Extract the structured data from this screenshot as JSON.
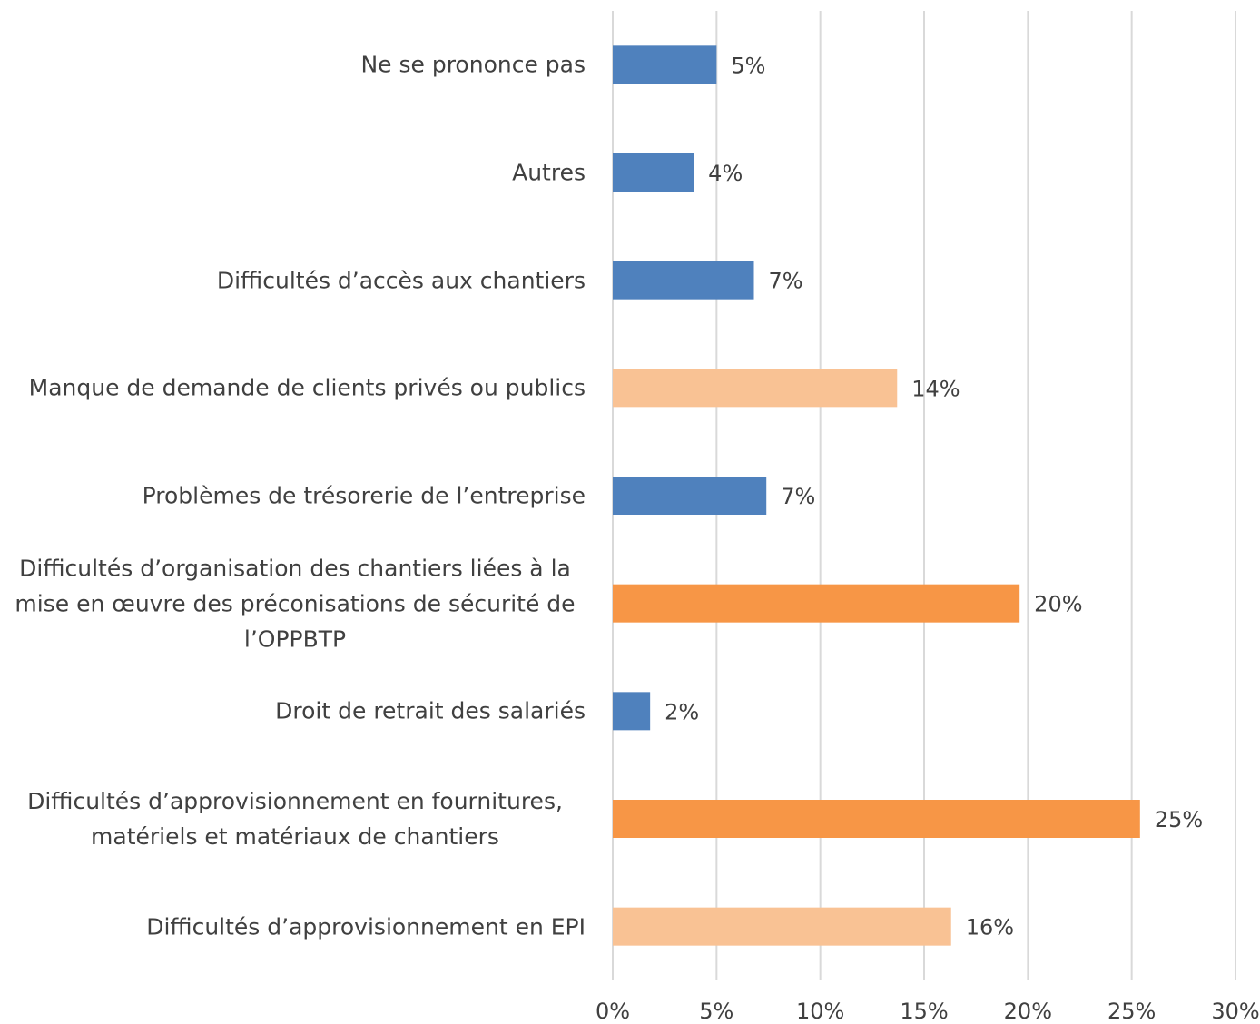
{
  "chart_data": {
    "type": "bar",
    "orientation": "horizontal",
    "categories": [
      "Ne se prononce pas",
      "Autres",
      "Difficultés d’accès aux chantiers",
      "Manque de demande de clients privés ou publics",
      "Problèmes de trésorerie de l’entreprise",
      "Difficultés d’organisation des chantiers liées à la mise en œuvre des préconisations de sécurité de l’OPPBTP",
      "Droit de retrait des salariés",
      "Difficultés d’approvisionnement en fournitures, matériels et matériaux de chantiers",
      "Difficultés d’approvisionnement en EPI"
    ],
    "values": [
      5.0,
      3.9,
      6.8,
      13.7,
      7.4,
      19.6,
      1.8,
      25.4,
      16.3
    ],
    "value_labels": [
      "5%",
      "4%",
      "7%",
      "14%",
      "7%",
      "20%",
      "2%",
      "25%",
      "16%"
    ],
    "colors": [
      "#4f81bd",
      "#4f81bd",
      "#4f81bd",
      "#f9c294",
      "#4f81bd",
      "#f79646",
      "#4f81bd",
      "#f79646",
      "#f9c294"
    ],
    "xlim": [
      0,
      30
    ],
    "xticks": [
      {
        "value": 0,
        "label": "0%"
      },
      {
        "value": 5,
        "label": "5%"
      },
      {
        "value": 10,
        "label": "10%"
      },
      {
        "value": 15,
        "label": "15%"
      },
      {
        "value": 20,
        "label": "20%"
      },
      {
        "value": 25,
        "label": "25%"
      },
      {
        "value": 30,
        "label": "30%"
      }
    ],
    "grid": true
  }
}
